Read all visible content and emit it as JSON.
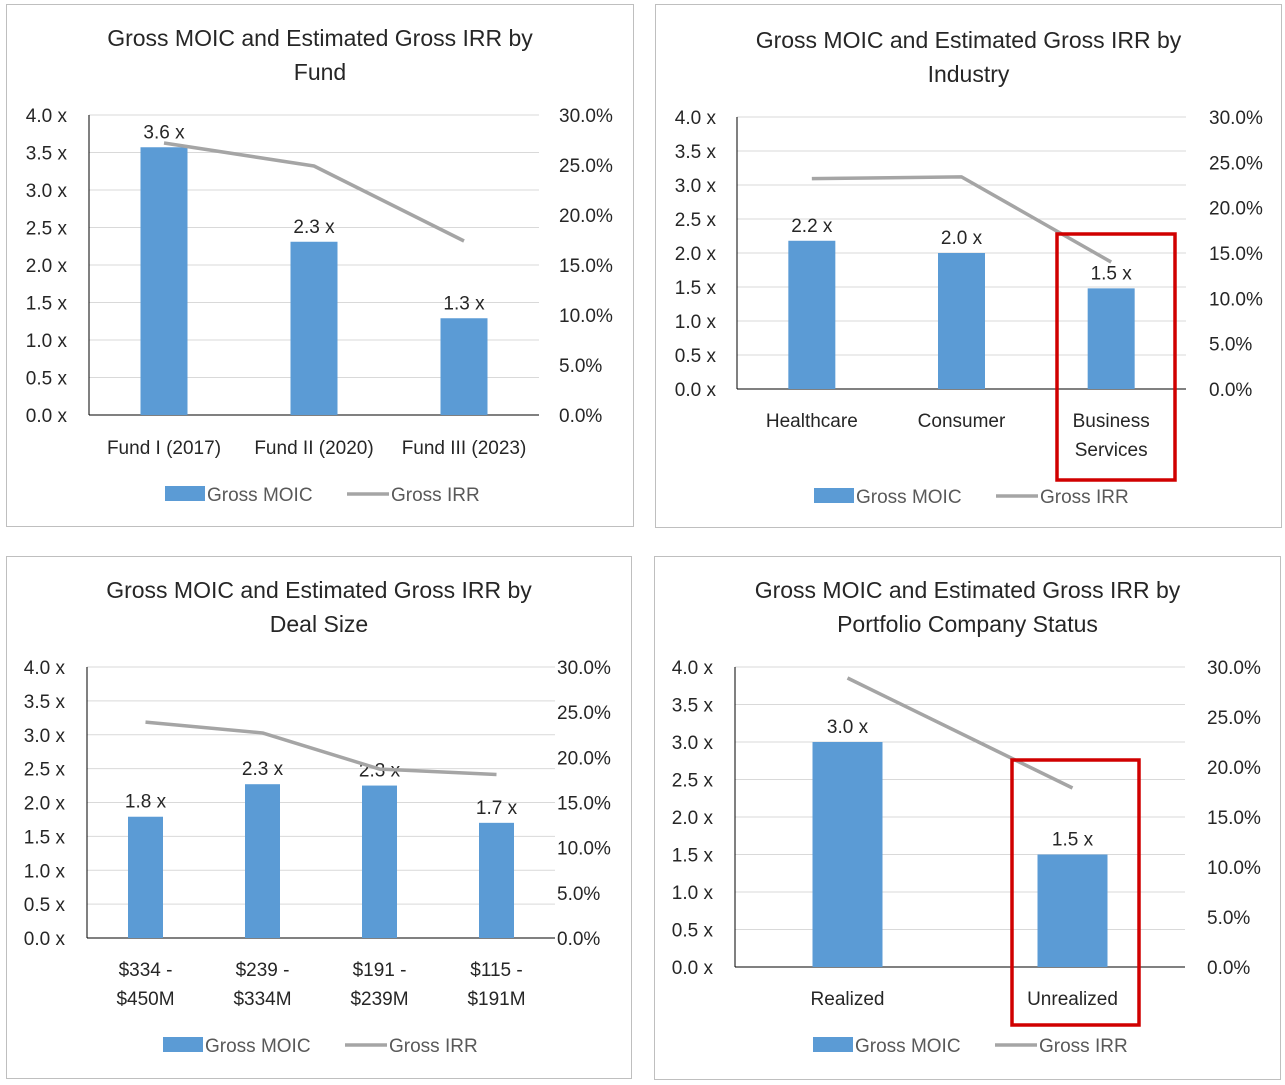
{
  "colors": {
    "bar": "#5b9bd5",
    "line": "#a5a5a5",
    "grid": "#d9d9d9",
    "axis": "#000000",
    "highlight": "#d00000"
  },
  "legend": {
    "bar_label": "Gross MOIC",
    "line_label": "Gross IRR"
  },
  "chart_data": [
    {
      "type": "bar",
      "title_lines": [
        "Gross MOIC and Estimated Gross IRR by",
        "Fund"
      ],
      "categories": [
        [
          "Fund I (2017)"
        ],
        [
          "Fund II (2020)"
        ],
        [
          "Fund III (2023)"
        ]
      ],
      "series": [
        {
          "name": "Gross MOIC",
          "type": "bar",
          "axis": "left",
          "values": [
            3.57,
            2.31,
            1.29
          ],
          "labels": [
            "3.6 x",
            "2.3 x",
            "1.3 x"
          ]
        },
        {
          "name": "Gross IRR",
          "type": "line",
          "axis": "right",
          "values": [
            27.2,
            24.9,
            17.4
          ]
        }
      ],
      "ylim": [
        0,
        4
      ],
      "y_ticks": [
        "0.0 x",
        "0.5 x",
        "1.0 x",
        "1.5 x",
        "2.0 x",
        "2.5 x",
        "3.0 x",
        "3.5 x",
        "4.0 x"
      ],
      "y2lim": [
        0,
        30
      ],
      "y2_ticks": [
        "0.0%",
        "5.0%",
        "10.0%",
        "15.0%",
        "20.0%",
        "25.0%",
        "30.0%"
      ],
      "grid": true,
      "legend_position": "bottom",
      "highlight_category": null
    },
    {
      "type": "bar",
      "title_lines": [
        "Gross MOIC and Estimated Gross IRR by",
        "Industry"
      ],
      "categories": [
        [
          "Healthcare"
        ],
        [
          "Consumer"
        ],
        [
          "Business",
          "Services"
        ]
      ],
      "series": [
        {
          "name": "Gross MOIC",
          "type": "bar",
          "axis": "left",
          "values": [
            2.18,
            2.0,
            1.48
          ],
          "labels": [
            "2.2 x",
            "2.0 x",
            "1.5 x"
          ]
        },
        {
          "name": "Gross IRR",
          "type": "line",
          "axis": "right",
          "values": [
            23.2,
            23.4,
            14.0
          ]
        }
      ],
      "ylim": [
        0,
        4
      ],
      "y_ticks": [
        "0.0 x",
        "0.5 x",
        "1.0 x",
        "1.5 x",
        "2.0 x",
        "2.5 x",
        "3.0 x",
        "3.5 x",
        "4.0 x"
      ],
      "y2lim": [
        0,
        30
      ],
      "y2_ticks": [
        "0.0%",
        "5.0%",
        "10.0%",
        "15.0%",
        "20.0%",
        "25.0%",
        "30.0%"
      ],
      "grid": true,
      "legend_position": "bottom",
      "highlight_category": 2
    },
    {
      "type": "bar",
      "title_lines": [
        "Gross MOIC and Estimated Gross IRR by",
        "Deal Size"
      ],
      "categories": [
        [
          "$334 -",
          "$450M"
        ],
        [
          "$239 -",
          "$334M"
        ],
        [
          "$191 -",
          "$239M"
        ],
        [
          "$115 -",
          "$191M"
        ]
      ],
      "series": [
        {
          "name": "Gross MOIC",
          "type": "bar",
          "axis": "left",
          "values": [
            1.79,
            2.27,
            2.25,
            1.7
          ],
          "labels": [
            "1.8 x",
            "2.3 x",
            "2.3 x",
            "1.7 x"
          ]
        },
        {
          "name": "Gross IRR",
          "type": "line",
          "axis": "right",
          "values": [
            23.9,
            22.7,
            18.7,
            18.1
          ]
        }
      ],
      "ylim": [
        0,
        4
      ],
      "y_ticks": [
        "0.0 x",
        "0.5 x",
        "1.0 x",
        "1.5 x",
        "2.0 x",
        "2.5 x",
        "3.0 x",
        "3.5 x",
        "4.0 x"
      ],
      "y2lim": [
        0,
        30
      ],
      "y2_ticks": [
        "0.0%",
        "5.0%",
        "10.0%",
        "15.0%",
        "20.0%",
        "25.0%",
        "30.0%"
      ],
      "grid": true,
      "legend_position": "bottom",
      "highlight_category": null
    },
    {
      "type": "bar",
      "title_lines": [
        "Gross MOIC and Estimated Gross IRR by",
        "Portfolio Company Status"
      ],
      "categories": [
        [
          "Realized"
        ],
        [
          "Unrealized"
        ]
      ],
      "series": [
        {
          "name": "Gross MOIC",
          "type": "bar",
          "axis": "left",
          "values": [
            3.0,
            1.5
          ],
          "labels": [
            "3.0 x",
            "1.5 x"
          ]
        },
        {
          "name": "Gross IRR",
          "type": "line",
          "axis": "right",
          "values": [
            28.9,
            17.9
          ]
        }
      ],
      "ylim": [
        0,
        4
      ],
      "y_ticks": [
        "0.0 x",
        "0.5 x",
        "1.0 x",
        "1.5 x",
        "2.0 x",
        "2.5 x",
        "3.0 x",
        "3.5 x",
        "4.0 x"
      ],
      "y2lim": [
        0,
        30
      ],
      "y2_ticks": [
        "0.0%",
        "5.0%",
        "10.0%",
        "15.0%",
        "20.0%",
        "25.0%",
        "30.0%"
      ],
      "grid": true,
      "legend_position": "bottom",
      "highlight_category": 1
    }
  ]
}
